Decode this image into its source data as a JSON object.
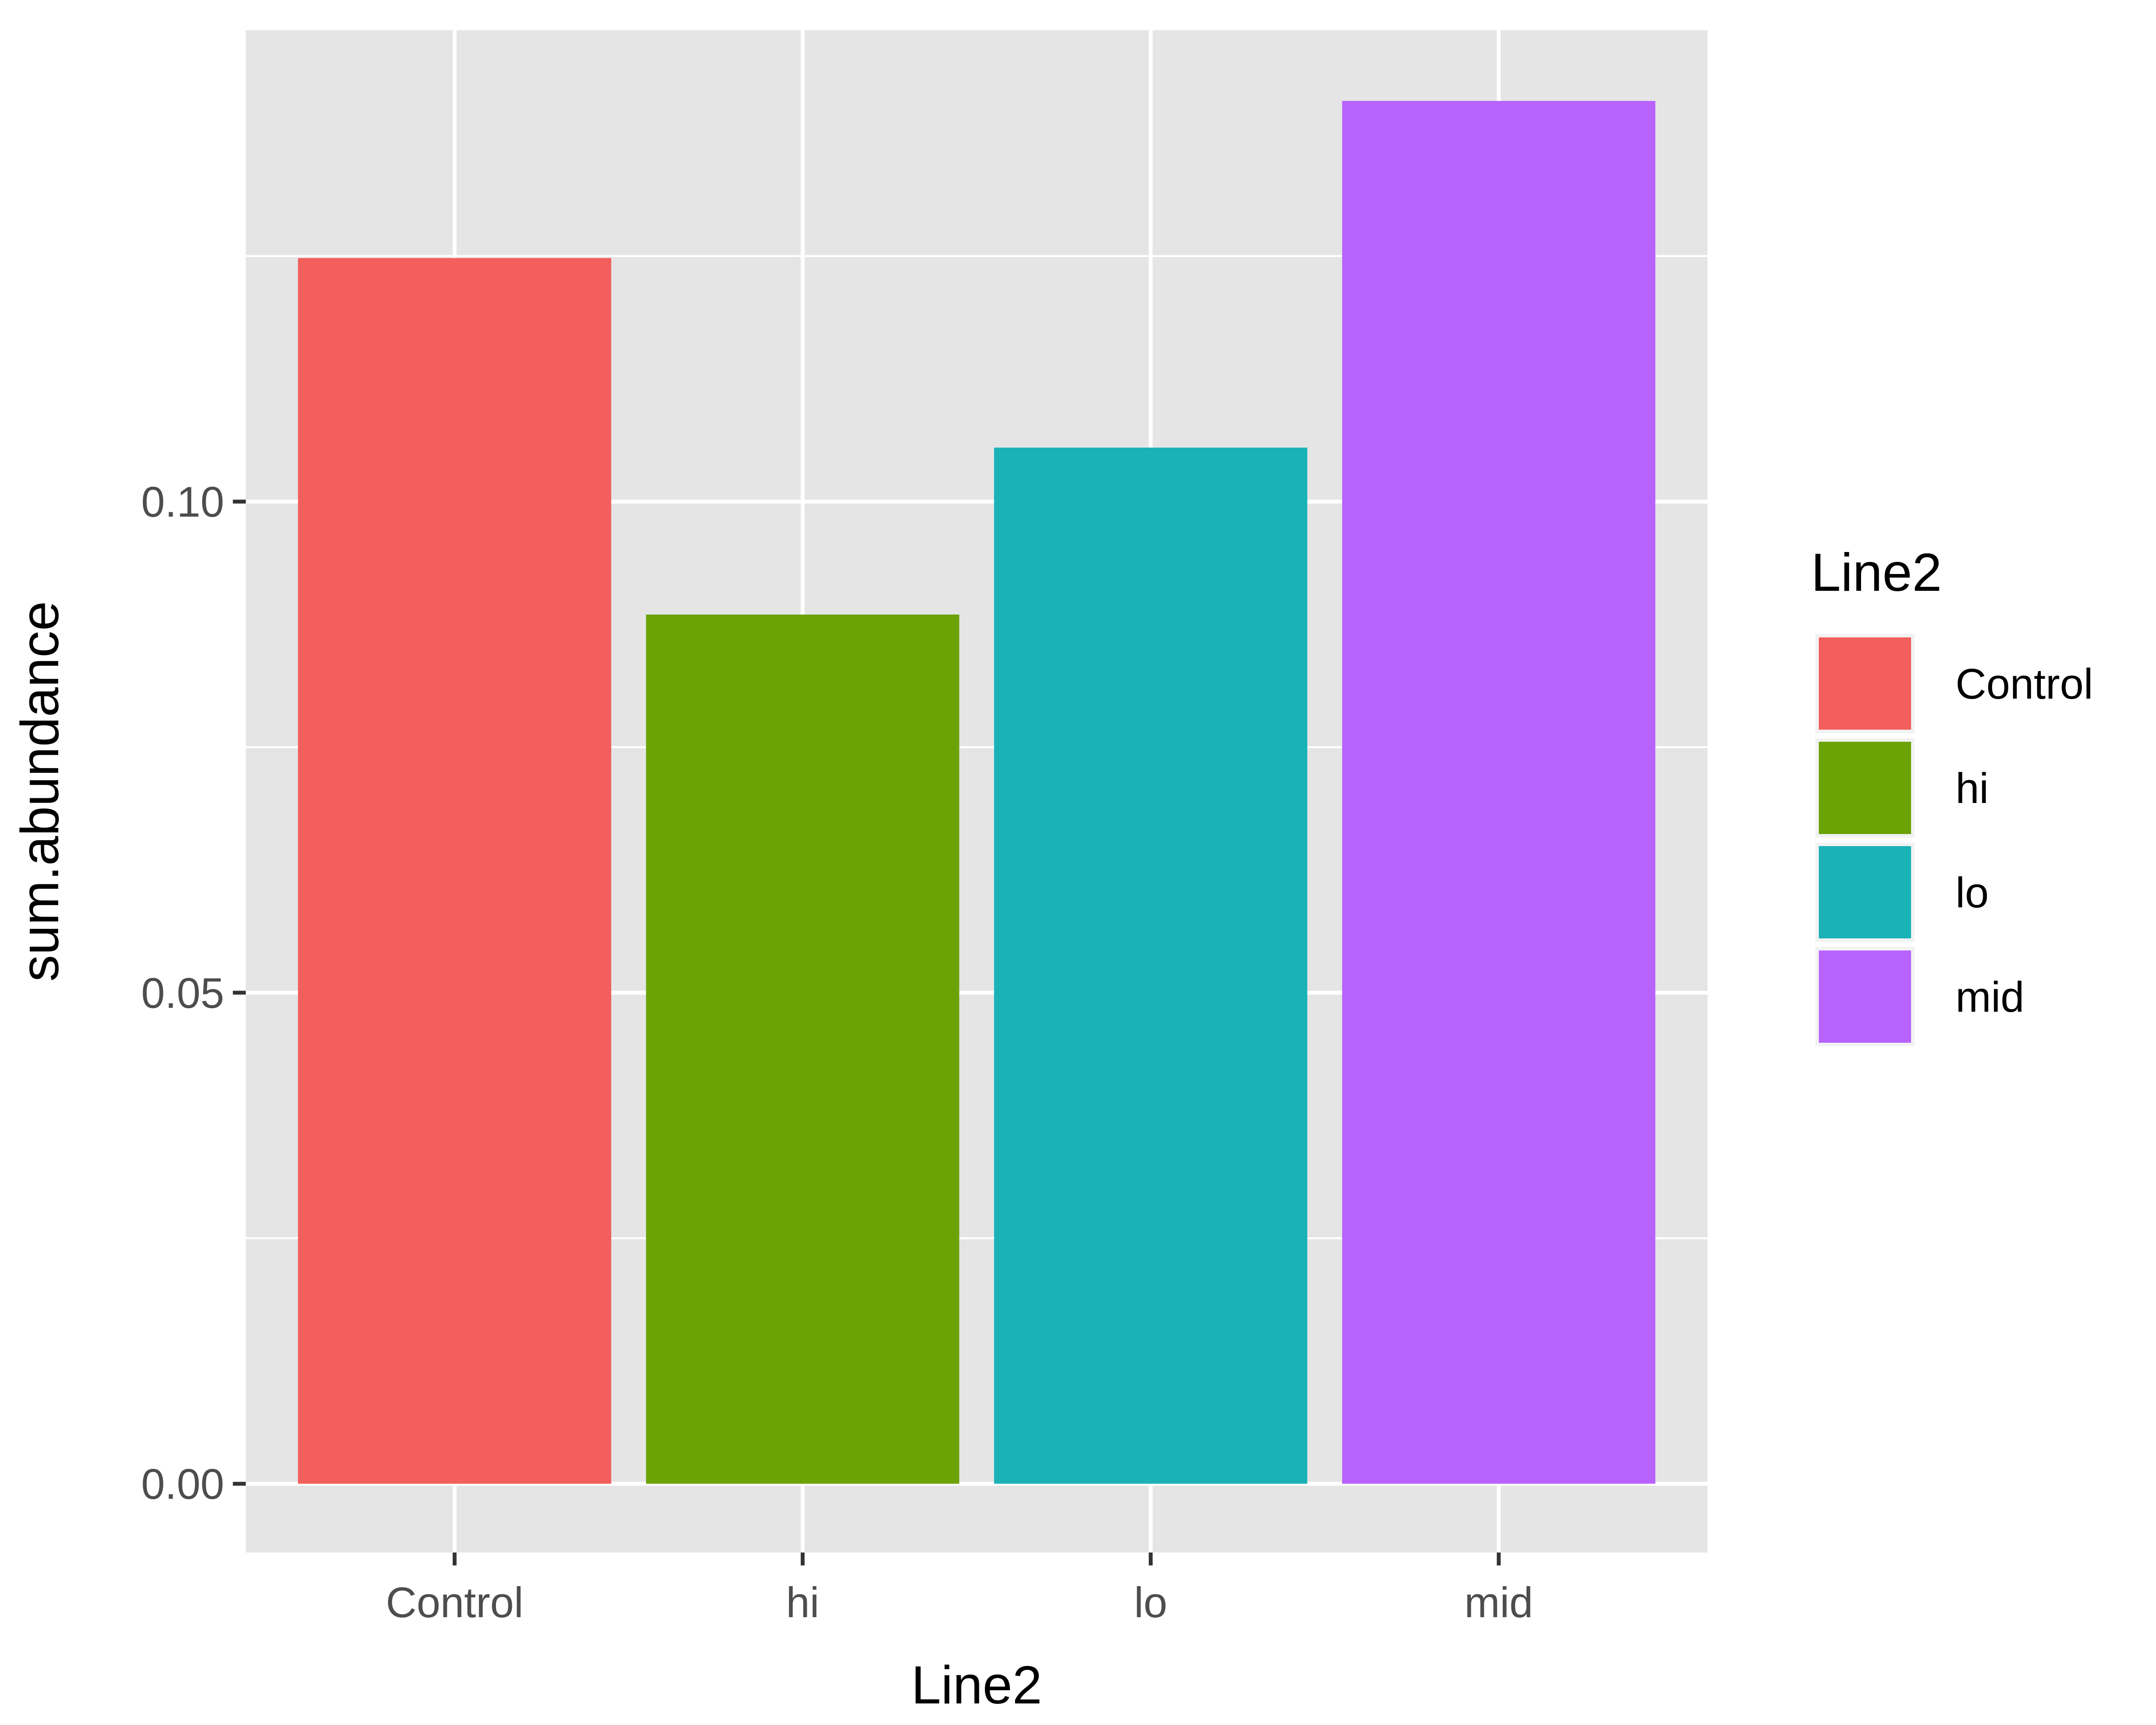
{
  "chart_data": {
    "type": "bar",
    "categories": [
      "Control",
      "hi",
      "lo",
      "mid"
    ],
    "values": [
      0.1248,
      0.0885,
      0.1055,
      0.1408
    ],
    "colors": [
      "#F25F5C",
      "#6BA304",
      "#1AB2B7",
      "#B863FF"
    ],
    "xlabel": "Line2",
    "ylabel": "sum.abundance",
    "ylim": [
      -0.007,
      0.148
    ],
    "y_ticks": [
      0.0,
      0.05,
      0.1
    ],
    "y_tick_labels": [
      "0.00",
      "0.05",
      "0.10"
    ],
    "grid": true,
    "panel_background": "#E5E5E5",
    "legend": {
      "title": "Line2",
      "placement": "right",
      "items": [
        "Control",
        "hi",
        "lo",
        "mid"
      ]
    }
  }
}
